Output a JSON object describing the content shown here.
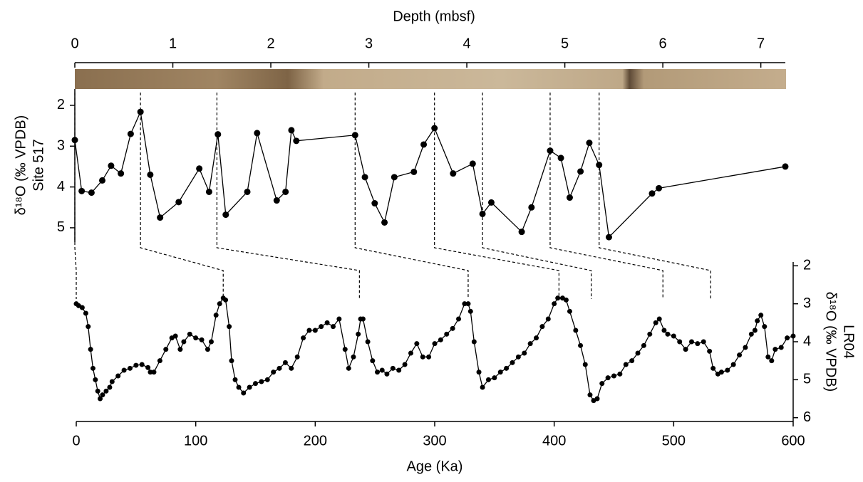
{
  "chart_data": {
    "type": "line",
    "x2label": "Depth (mbsf)",
    "x2lim": [
      0,
      7.25
    ],
    "x2ticks": [
      0,
      1,
      2,
      3,
      4,
      5,
      6,
      7
    ],
    "xlabel": "Age (Ka)",
    "xlim": [
      0,
      600
    ],
    "xticks": [
      0,
      100,
      200,
      300,
      400,
      500,
      600
    ],
    "color": "#000000",
    "series": [
      {
        "name": "Site 517",
        "ylabel": "δ¹⁸O (‰ VPDB)",
        "x_axis": "x2",
        "ylim": [
          1.6,
          5.35
        ],
        "yticks": [
          2,
          3,
          4,
          5
        ],
        "x": [
          0,
          0.07,
          0.17,
          0.28,
          0.37,
          0.47,
          0.57,
          0.67,
          0.77,
          0.87,
          1.06,
          1.27,
          1.37,
          1.46,
          1.54,
          1.76,
          1.86,
          2.06,
          2.15,
          2.21,
          2.26,
          2.86,
          2.96,
          3.06,
          3.16,
          3.26,
          3.46,
          3.56,
          3.67,
          3.86,
          4.06,
          4.16,
          4.25,
          4.56,
          4.66,
          4.85,
          4.96,
          5.05,
          5.16,
          5.25,
          5.35,
          5.45,
          5.89,
          5.96,
          7.25
        ],
        "values": [
          2.85,
          4.1,
          4.14,
          3.84,
          3.48,
          3.67,
          2.7,
          2.16,
          3.7,
          4.75,
          4.37,
          3.55,
          4.12,
          2.71,
          4.68,
          4.12,
          2.68,
          4.33,
          4.12,
          2.61,
          2.87,
          2.73,
          3.76,
          4.4,
          4.87,
          3.76,
          3.63,
          2.96,
          2.56,
          3.67,
          3.43,
          4.66,
          4.38,
          5.1,
          4.5,
          3.11,
          3.29,
          4.26,
          3.62,
          2.92,
          3.46,
          5.23,
          4.16,
          4.03,
          3.5
        ]
      },
      {
        "name": "LR04",
        "ylabel": "δ¹⁸O (‰ VPDB)",
        "x_axis": "x",
        "ylim": [
          1.9,
          6.1
        ],
        "yticks": [
          2,
          3,
          4,
          5,
          6
        ],
        "x": [
          0,
          2,
          5,
          8,
          10,
          12,
          14,
          16,
          18,
          20,
          22,
          25,
          28,
          30,
          35,
          40,
          45,
          50,
          55,
          60,
          62,
          65,
          70,
          75,
          80,
          83,
          87,
          90,
          95,
          100,
          105,
          110,
          113,
          117,
          120,
          123,
          125,
          128,
          130,
          133,
          136,
          140,
          145,
          150,
          155,
          160,
          165,
          170,
          175,
          180,
          185,
          190,
          195,
          200,
          205,
          210,
          215,
          220,
          225,
          228,
          232,
          236,
          238,
          240,
          244,
          248,
          252,
          256,
          260,
          265,
          270,
          275,
          280,
          285,
          290,
          295,
          300,
          305,
          310,
          315,
          320,
          325,
          328,
          330,
          333,
          337,
          340,
          345,
          350,
          355,
          360,
          365,
          370,
          375,
          380,
          385,
          390,
          395,
          400,
          403,
          407,
          410,
          413,
          418,
          422,
          426,
          430,
          433,
          436,
          440,
          445,
          450,
          455,
          460,
          465,
          470,
          475,
          480,
          485,
          488,
          492,
          495,
          500,
          505,
          510,
          515,
          520,
          525,
          530,
          533,
          537,
          540,
          545,
          550,
          555,
          560,
          565,
          568,
          570,
          573,
          576,
          579,
          582,
          585,
          590,
          595,
          600
        ],
        "values": [
          3.0,
          3.05,
          3.1,
          3.25,
          3.6,
          4.2,
          4.7,
          5.0,
          5.3,
          5.5,
          5.4,
          5.3,
          5.2,
          5.05,
          4.9,
          4.75,
          4.7,
          4.62,
          4.6,
          4.68,
          4.8,
          4.8,
          4.5,
          4.2,
          3.9,
          3.85,
          4.2,
          4.0,
          3.8,
          3.9,
          3.95,
          4.2,
          4.0,
          3.3,
          3.0,
          2.85,
          2.9,
          3.6,
          4.5,
          5.0,
          5.2,
          5.35,
          5.2,
          5.1,
          5.05,
          5.0,
          4.8,
          4.7,
          4.55,
          4.7,
          4.4,
          3.9,
          3.7,
          3.7,
          3.6,
          3.5,
          3.6,
          3.4,
          4.2,
          4.7,
          4.4,
          3.8,
          3.4,
          3.4,
          4.0,
          4.5,
          4.8,
          4.75,
          4.85,
          4.7,
          4.75,
          4.6,
          4.3,
          4.05,
          4.4,
          4.4,
          4.05,
          3.95,
          3.8,
          3.65,
          3.4,
          3.0,
          3.0,
          3.2,
          4.0,
          4.8,
          5.2,
          5.0,
          4.95,
          4.8,
          4.7,
          4.55,
          4.4,
          4.3,
          4.05,
          3.9,
          3.6,
          3.4,
          3.0,
          2.85,
          2.85,
          2.9,
          3.2,
          3.7,
          4.1,
          4.6,
          5.4,
          5.55,
          5.5,
          5.1,
          4.95,
          4.9,
          4.85,
          4.6,
          4.5,
          4.3,
          4.1,
          3.8,
          3.5,
          3.4,
          3.7,
          3.8,
          3.85,
          4.0,
          4.2,
          4.0,
          4.05,
          4.0,
          4.25,
          4.7,
          4.85,
          4.8,
          4.75,
          4.6,
          4.35,
          4.15,
          3.8,
          3.7,
          3.45,
          3.3,
          3.6,
          4.4,
          4.5,
          4.2,
          4.15,
          3.9,
          3.85
        ]
      }
    ],
    "ties": [
      {
        "depth": 0,
        "age": 0
      },
      {
        "depth": 0.67,
        "age": 123
      },
      {
        "depth": 1.45,
        "age": 237
      },
      {
        "depth": 2.86,
        "age": 328
      },
      {
        "depth": 3.67,
        "age": 404
      },
      {
        "depth": 4.16,
        "age": 431
      },
      {
        "depth": 4.85,
        "age": 491
      },
      {
        "depth": 5.35,
        "age": 531
      }
    ]
  }
}
